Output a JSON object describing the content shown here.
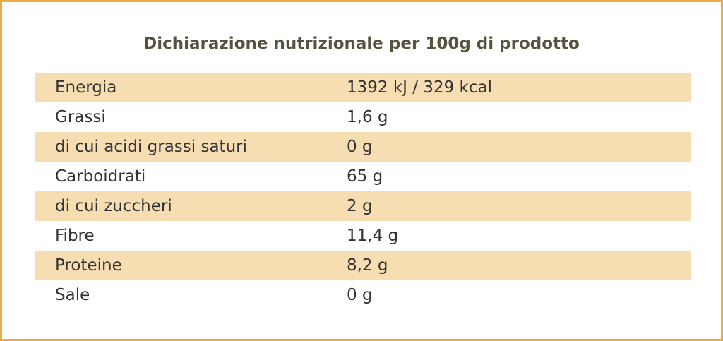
{
  "header": {
    "title": "Dichiarazione nutrizionale per 100g di prodotto"
  },
  "table": {
    "rows": [
      [
        "Energia",
        "1392 kJ / 329 kcal"
      ],
      [
        "Grassi",
        "1,6 g"
      ],
      [
        "di cui acidi grassi saturi",
        "0 g"
      ],
      [
        "Carboidrati",
        "65 g"
      ],
      [
        "di cui zuccheri",
        "2 g"
      ],
      [
        "Fibre",
        "11,4 g"
      ],
      [
        "Proteine",
        "8,2 g"
      ],
      [
        "Sale",
        "0 g"
      ]
    ]
  }
}
